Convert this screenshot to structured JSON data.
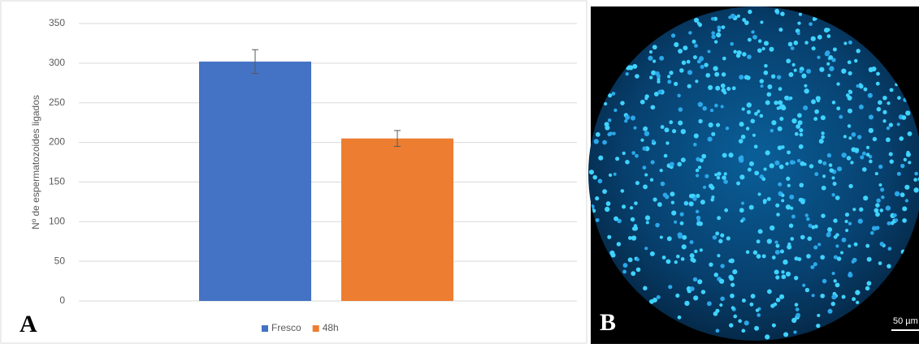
{
  "chart_data": {
    "type": "bar",
    "y_label": "Nº de espermatozoides ligados",
    "categories": [
      null
    ],
    "series": [
      {
        "name": "Fresco",
        "color": "#4472c4",
        "values": [
          302
        ],
        "errors": [
          15
        ]
      },
      {
        "name": "48h",
        "color": "#ed7d31",
        "values": [
          205
        ],
        "errors": [
          10
        ]
      }
    ],
    "ylim": [
      0,
      350
    ],
    "yticks": [
      0,
      50,
      100,
      150,
      200,
      250,
      300,
      350
    ],
    "grid": true,
    "legend": "bottom"
  },
  "panels": {
    "a_label": "A",
    "b_label": "B",
    "scale_bar": "50 µm"
  }
}
